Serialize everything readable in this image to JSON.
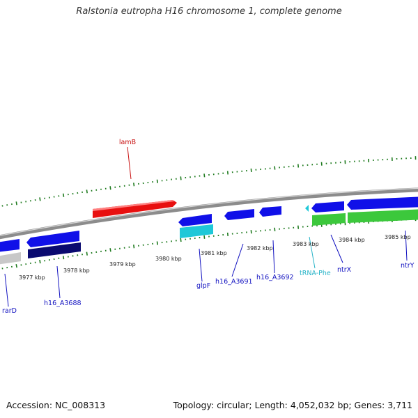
{
  "title": "Ralstonia eutropha H16 chromosome 1, complete genome",
  "footer": {
    "accession": "Accession: NC_008313",
    "topology": "Topology: circular; Length: 4,052,032 bp; Genes: 3,711"
  },
  "colors": {
    "ticks": "#1e7a1e",
    "backbone": "#8c8c8c",
    "gene_blue": "#1010e8",
    "gene_darkblue": "#0a0a70",
    "gene_red": "#e81010",
    "gene_cyan": "#1ec8d8",
    "gene_green": "#3cc83c",
    "gene_gray": "#c8c8c8",
    "label_blue": "#1010c0",
    "label_red": "#c81010",
    "label_cyan": "#28b4c8",
    "label_kbp": "#222222"
  },
  "scale_labels": [
    "3977 kbp",
    "3978 kbp",
    "3979 kbp",
    "3980 kbp",
    "3981 kbp",
    "3982 kbp",
    "3983 kbp",
    "3984 kbp",
    "3985 kbp"
  ],
  "gene_labels": [
    {
      "name": "lamB",
      "color": "red"
    },
    {
      "name": "rarD",
      "color": "blue"
    },
    {
      "name": "h16_A3688",
      "color": "blue"
    },
    {
      "name": "glpF",
      "color": "blue"
    },
    {
      "name": "h16_A3691",
      "color": "blue"
    },
    {
      "name": "h16_A3692",
      "color": "blue"
    },
    {
      "name": "tRNA-Phe",
      "color": "cyan"
    },
    {
      "name": "ntrX",
      "color": "blue"
    },
    {
      "name": "ntrY",
      "color": "blue"
    }
  ]
}
